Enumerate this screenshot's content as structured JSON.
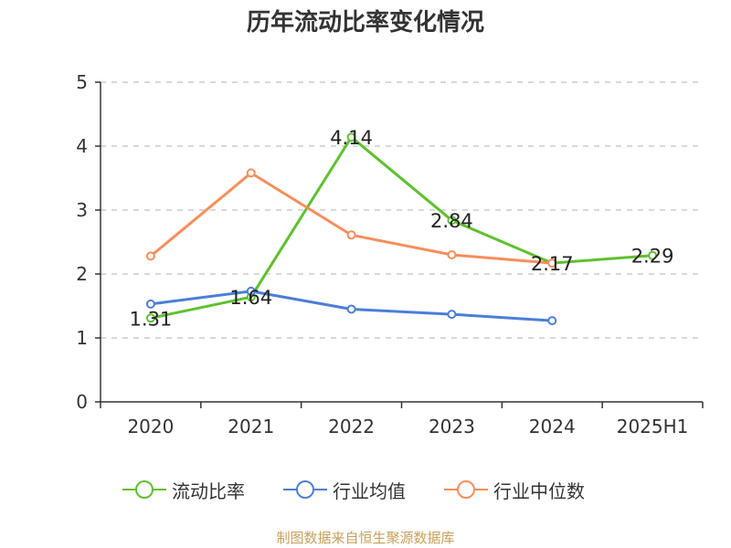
{
  "chart_data": {
    "type": "line",
    "title": "历年流动比率变化情况",
    "categories": [
      "2020",
      "2021",
      "2022",
      "2023",
      "2024",
      "2025H1"
    ],
    "yticks": [
      "0",
      "1",
      "2",
      "3",
      "4",
      "5"
    ],
    "ylim": [
      0,
      5
    ],
    "grid": true,
    "legend_position": "bottom",
    "series": [
      {
        "name": "流动比率",
        "color": "#5ec12e",
        "values": [
          1.31,
          1.64,
          4.14,
          2.84,
          2.17,
          2.29
        ],
        "labels": [
          "1.31",
          "1.64",
          "4.14",
          "2.84",
          "2.17",
          "2.29"
        ]
      },
      {
        "name": "行业均值",
        "color": "#4a7fd9",
        "values": [
          1.53,
          1.73,
          1.45,
          1.37,
          1.27,
          null
        ]
      },
      {
        "name": "行业中位数",
        "color": "#f98d5a",
        "values": [
          2.28,
          3.58,
          2.61,
          2.3,
          2.17,
          null
        ]
      }
    ]
  },
  "footer": "制图数据来自恒生聚源数据库"
}
